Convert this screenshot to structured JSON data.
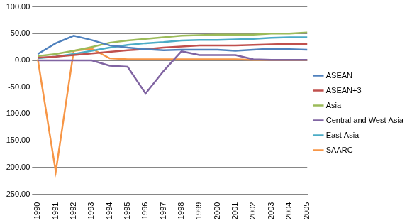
{
  "chart_data": {
    "type": "line",
    "categories": [
      "1990",
      "1991",
      "1992",
      "1993",
      "1994",
      "1995",
      "1996",
      "1997",
      "1998",
      "1999",
      "2000",
      "2001",
      "2002",
      "2003",
      "2004",
      "2005"
    ],
    "series": [
      {
        "name": "ASEAN",
        "color": "#4F81BD",
        "values": [
          12,
          32,
          46,
          38,
          28,
          24,
          21,
          19,
          20,
          20,
          20,
          18,
          20,
          22,
          21,
          20
        ]
      },
      {
        "name": "ASEAN+3",
        "color": "#C0504D",
        "values": [
          5,
          7,
          10,
          13,
          16,
          19,
          21,
          24,
          26,
          28,
          28,
          28,
          29,
          30,
          31,
          31
        ]
      },
      {
        "name": "Asia",
        "color": "#9BBB59",
        "values": [
          8,
          12,
          18,
          25,
          33,
          37,
          40,
          43,
          46,
          47,
          48,
          48,
          48,
          50,
          50,
          52
        ]
      },
      {
        "name": "Central and West Asia",
        "color": "#8064A2",
        "values": [
          0,
          0,
          0,
          0,
          -10,
          -12,
          -62,
          -20,
          17,
          10,
          10,
          10,
          2,
          1,
          1,
          1
        ]
      },
      {
        "name": "East Asia",
        "color": "#4BACC6",
        "values": [
          4,
          7,
          12,
          18,
          24,
          29,
          32,
          34,
          37,
          38,
          38,
          39,
          40,
          42,
          43,
          43
        ]
      },
      {
        "name": "SAARC",
        "color": "#F79646",
        "values": [
          2,
          -208,
          18,
          22,
          4,
          2,
          2,
          2,
          2,
          2,
          2,
          2,
          1,
          1,
          1,
          1
        ]
      }
    ],
    "ylim": [
      -250,
      100
    ],
    "yticks": [
      {
        "value": 100,
        "label": "100.00"
      },
      {
        "value": 50,
        "label": "50.00"
      },
      {
        "value": 0,
        "label": "0.00"
      },
      {
        "value": -50,
        "label": "-50.00"
      },
      {
        "value": -100,
        "label": "-100.00"
      },
      {
        "value": -150,
        "label": "-150.00"
      },
      {
        "value": -200,
        "label": "-200.00"
      },
      {
        "value": -250,
        "label": "-250.00"
      }
    ],
    "grid": true,
    "legend": "right"
  }
}
